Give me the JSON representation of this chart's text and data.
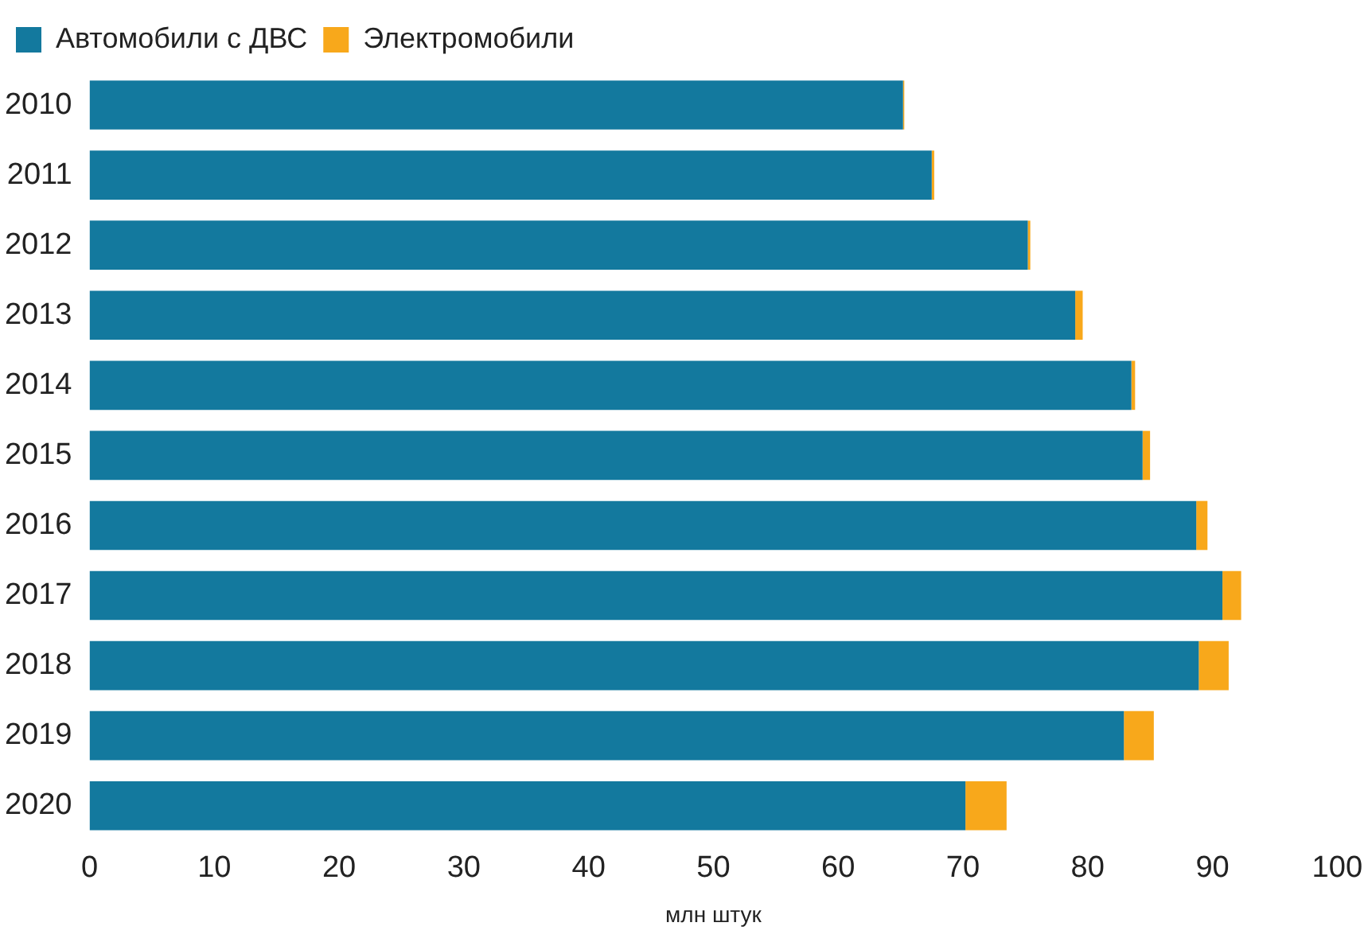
{
  "chart_data": {
    "type": "bar",
    "orientation": "horizontal",
    "stacked": true,
    "categories": [
      "2010",
      "2011",
      "2012",
      "2013",
      "2014",
      "2015",
      "2016",
      "2017",
      "2018",
      "2019",
      "2020"
    ],
    "series": [
      {
        "name": "Автомобили с ДВС",
        "color": "#13799e",
        "values": [
          65.2,
          67.5,
          75.2,
          79.0,
          83.5,
          84.4,
          88.7,
          90.8,
          88.9,
          82.9,
          70.2
        ]
      },
      {
        "name": "Электромобили",
        "color": "#f8a81b",
        "values": [
          0.1,
          0.2,
          0.2,
          0.6,
          0.3,
          0.6,
          0.9,
          1.5,
          2.4,
          2.4,
          3.3
        ]
      }
    ],
    "xlim": [
      0,
      100
    ],
    "xticks": [
      0,
      10,
      20,
      30,
      40,
      50,
      60,
      70,
      80,
      90,
      100
    ],
    "xlabel": "млн штук",
    "grid": false,
    "legend": "top left"
  }
}
